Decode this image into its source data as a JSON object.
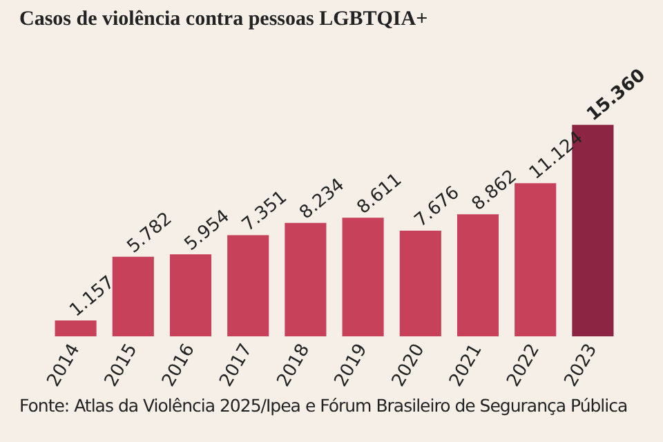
{
  "chart_data": {
    "type": "bar",
    "title": "Casos de violência contra pessoas LGBTQIA+",
    "categories": [
      "2014",
      "2015",
      "2016",
      "2017",
      "2018",
      "2019",
      "2020",
      "2021",
      "2022",
      "2023"
    ],
    "values": [
      1157,
      5782,
      5954,
      7351,
      8234,
      8611,
      7676,
      8862,
      11124,
      15360
    ],
    "value_labels": [
      "1.157",
      "5.782",
      "5.954",
      "7.351",
      "8.234",
      "8.611",
      "7.676",
      "8.862",
      "11.124",
      "15.360"
    ],
    "colors": [
      "#c8415a",
      "#c8415a",
      "#c8415a",
      "#c8415a",
      "#c8415a",
      "#c8415a",
      "#c8415a",
      "#c8415a",
      "#c8415a",
      "#8c2443"
    ],
    "grid": false,
    "legend": false,
    "annotations": [
      "Fonte: Atlas da Violência 2025/Ipea e Fórum Brasileiro de Segurança Pública"
    ]
  }
}
